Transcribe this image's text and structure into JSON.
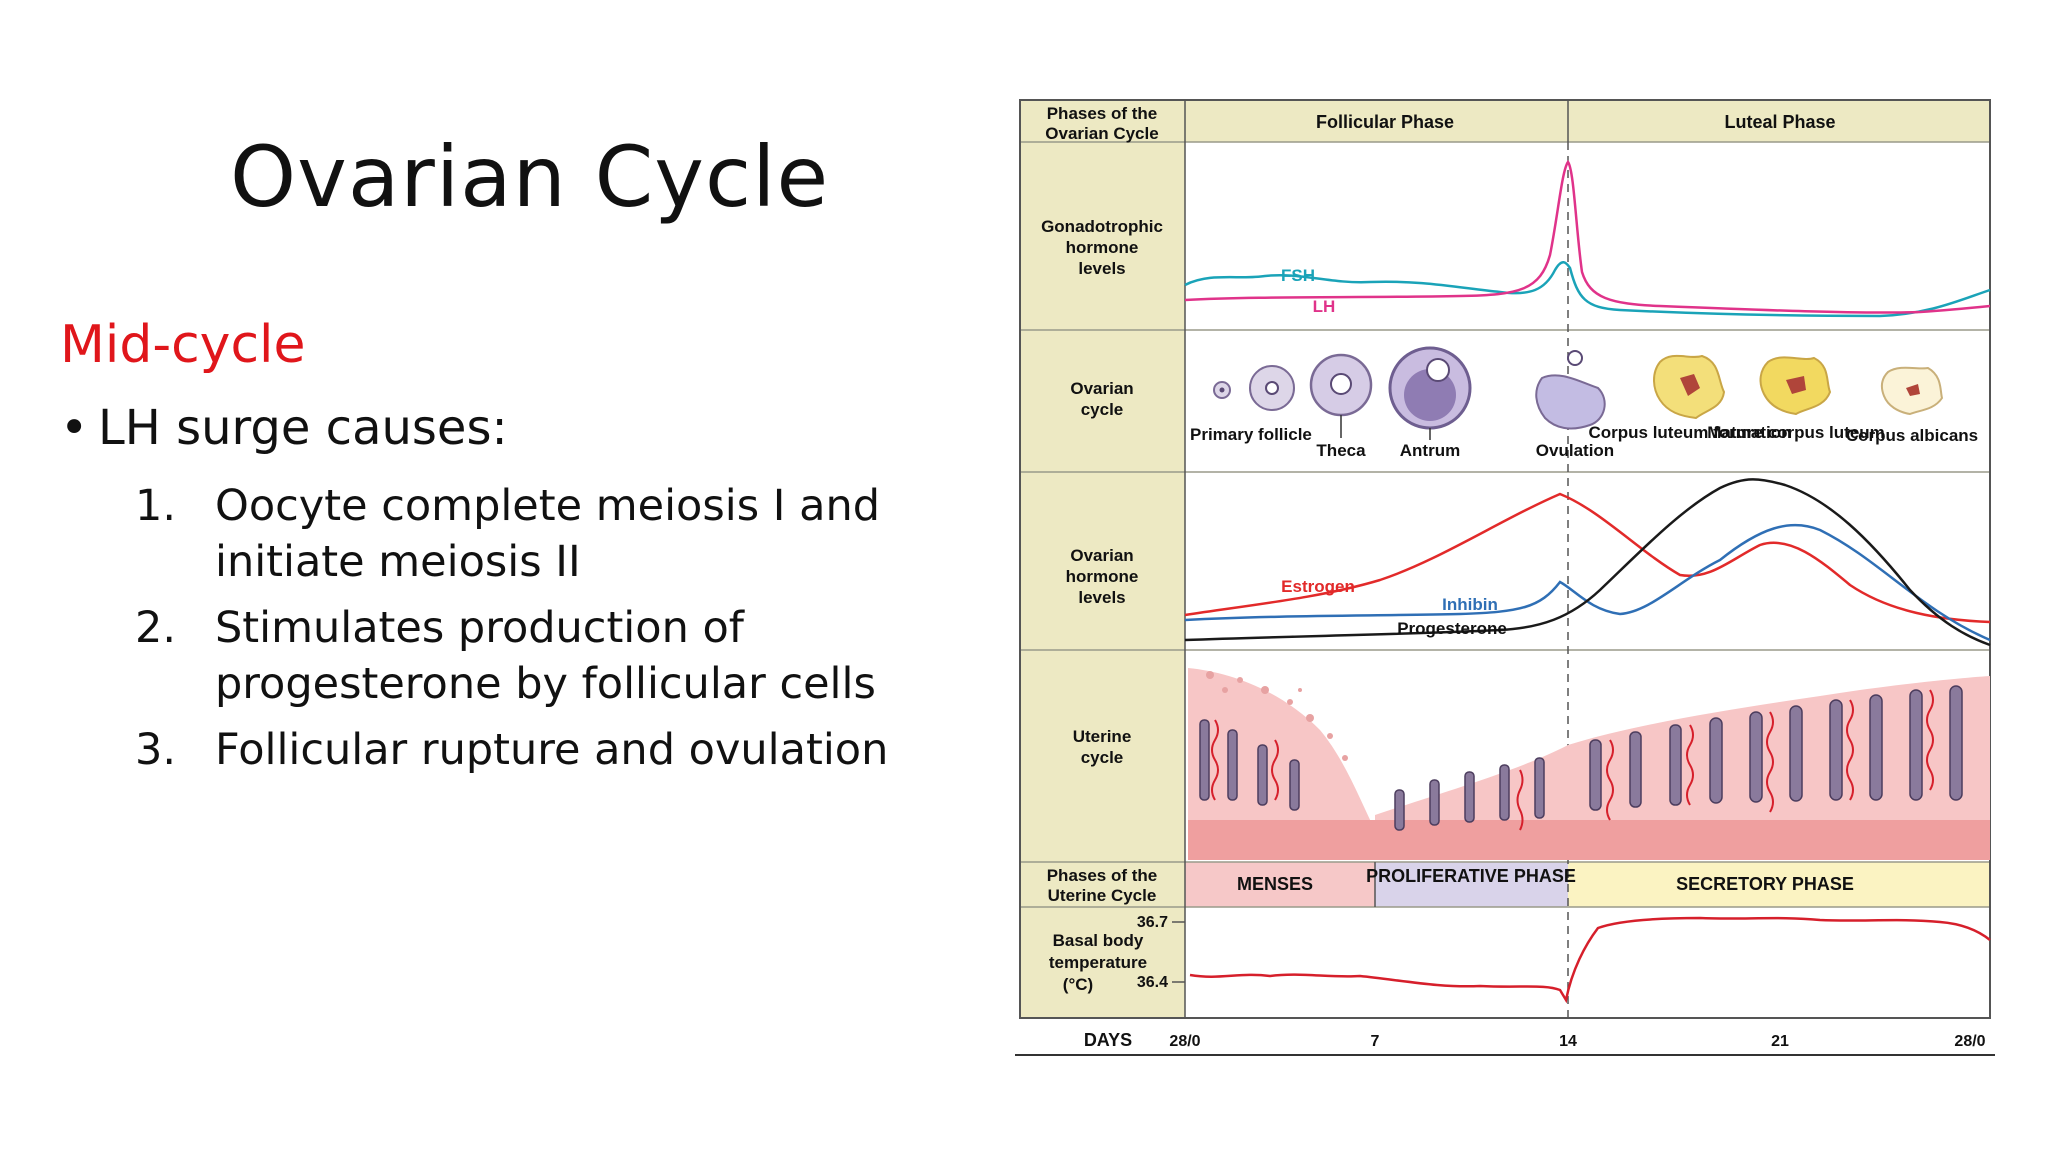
{
  "slide": {
    "title": "Ovarian Cycle",
    "subheading": "Mid-cycle",
    "bullet_symbol": "•",
    "bullet": "LH surge causes:",
    "items": [
      {
        "num": "1.",
        "text": "Oocyte complete meiosis I and initiate meiosis II"
      },
      {
        "num": "2.",
        "text": "Stimulates production of progesterone by follicular cells"
      },
      {
        "num": "3.",
        "text": "Follicular rupture and ovulation"
      }
    ]
  },
  "figure": {
    "row_labels": {
      "ovarian_phases": [
        "Phases of the",
        "Ovarian Cycle"
      ],
      "gonadotrophic": [
        "Gonadotrophic",
        "hormone",
        "levels"
      ],
      "ovarian_cycle": [
        "Ovarian",
        "cycle"
      ],
      "ovarian_hormones": [
        "Ovarian",
        "hormone",
        "levels"
      ],
      "uterine_cycle": [
        "Uterine",
        "cycle"
      ],
      "uterine_phases": [
        "Phases of the",
        "Uterine Cycle"
      ],
      "bbt": [
        "Basal body",
        "temperature",
        "(°C)"
      ]
    },
    "ovarian_phases": [
      "Follicular Phase",
      "Luteal Phase"
    ],
    "uterine_phases": [
      "MENSES",
      "PROLIFERATIVE PHASE",
      "SECRETORY PHASE"
    ],
    "follicle_stages": [
      {
        "label": "Primary follicle"
      },
      {
        "label": "Theca"
      },
      {
        "label": "Antrum"
      },
      {
        "label": "Ovulation"
      },
      {
        "label": "Corpus luteum formation"
      },
      {
        "label": "Mature corpus luteum"
      },
      {
        "label": "Corpus albicans"
      }
    ],
    "hormone_labels": {
      "fsh": "FSH",
      "lh": "LH",
      "estrogen": "Estrogen",
      "inhibin": "Inhibin",
      "progesterone": "Progesterone"
    },
    "bbt_ticks": [
      "36.7",
      "36.4"
    ],
    "days_label": "DAYS",
    "day_ticks": [
      "28/0",
      "7",
      "14",
      "21",
      "28/0"
    ],
    "colors": {
      "fsh": "#1aa3b8",
      "lh": "#e0338a",
      "estrogen": "#e22a2a",
      "inhibin": "#2f6fb5",
      "progesterone": "#1a1a1a",
      "label_panel": "#ede9c3",
      "menses": "#f6c8c8",
      "proliferative": "#d9d3ea",
      "secretory": "#fbf3c2",
      "title_text": "#111111",
      "accent_red": "#e0161b"
    }
  }
}
